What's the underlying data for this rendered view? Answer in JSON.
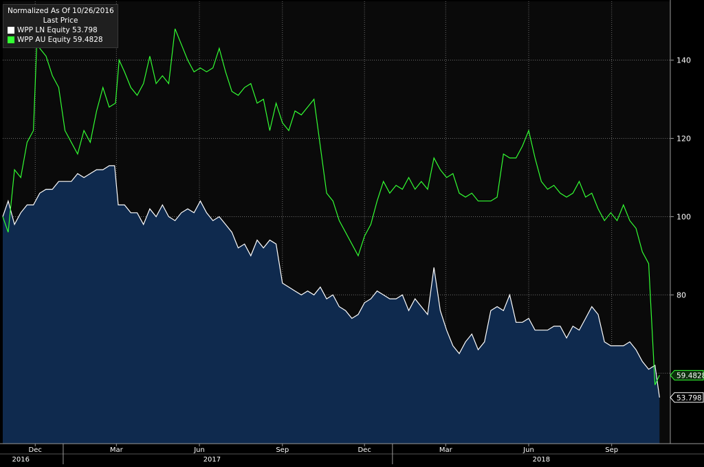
{
  "legend": {
    "title": "Normalized As Of 10/26/2016",
    "subtitle": "Last Price",
    "entries": [
      {
        "label": "WPP LN Equity 53.798",
        "color": "#ffffff"
      },
      {
        "label": "WPP AU Equity 59.4828",
        "color": "#33ff33"
      }
    ]
  },
  "colors": {
    "background": "#000000",
    "plot_background": "#0a0a0a",
    "grid": "#6e6e6e",
    "area_fill": "#0f2a4e",
    "ln_line": "#ffffff",
    "au_line": "#33ff33"
  },
  "chart_data": {
    "type": "line",
    "title": "",
    "xlabel": "",
    "ylabel": "",
    "ylim": [
      42,
      155
    ],
    "y_ticks": [
      140,
      120,
      100,
      80
    ],
    "x_ticks": [
      {
        "label": "Dec",
        "date": "2016-12-01"
      },
      {
        "label": "Mar",
        "date": "2017-03-01"
      },
      {
        "label": "Jun",
        "date": "2017-06-01"
      },
      {
        "label": "Sep",
        "date": "2017-09-01"
      },
      {
        "label": "Dec",
        "date": "2017-12-01"
      },
      {
        "label": "Mar",
        "date": "2018-03-01"
      },
      {
        "label": "Jun",
        "date": "2018-06-01"
      },
      {
        "label": "Sep",
        "date": "2018-09-01"
      }
    ],
    "year_labels": [
      {
        "label": "2016",
        "date": "2016-11-15"
      },
      {
        "label": "2017",
        "date": "2017-06-15"
      },
      {
        "label": "2018",
        "date": "2018-06-15"
      }
    ],
    "year_separators": [
      "2017-01-01",
      "2018-01-01"
    ],
    "xlim": [
      "2016-10-26",
      "2018-11-05"
    ],
    "grid": true,
    "legend_position": "top-left",
    "last_values": [
      {
        "series": "WPP AU Equity",
        "label": "59.4828",
        "value": 59.4828
      },
      {
        "series": "WPP LN Equity",
        "label": "53.798",
        "value": 53.798
      }
    ],
    "series": [
      {
        "name": "WPP LN Equity",
        "style": "area",
        "points": [
          [
            "2016-10-26",
            100
          ],
          [
            "2016-11-01",
            104
          ],
          [
            "2016-11-08",
            98
          ],
          [
            "2016-11-15",
            101
          ],
          [
            "2016-11-22",
            103
          ],
          [
            "2016-11-29",
            103
          ],
          [
            "2016-12-06",
            106
          ],
          [
            "2016-12-13",
            107
          ],
          [
            "2016-12-20",
            107
          ],
          [
            "2016-12-27",
            109
          ],
          [
            "2017-01-03",
            109
          ],
          [
            "2017-01-10",
            109
          ],
          [
            "2017-01-17",
            111
          ],
          [
            "2017-01-24",
            110
          ],
          [
            "2017-01-31",
            111
          ],
          [
            "2017-02-07",
            112
          ],
          [
            "2017-02-14",
            112
          ],
          [
            "2017-02-21",
            113
          ],
          [
            "2017-02-27",
            113
          ],
          [
            "2017-03-03",
            103
          ],
          [
            "2017-03-10",
            103
          ],
          [
            "2017-03-17",
            101
          ],
          [
            "2017-03-24",
            101
          ],
          [
            "2017-03-31",
            98
          ],
          [
            "2017-04-07",
            102
          ],
          [
            "2017-04-14",
            100
          ],
          [
            "2017-04-21",
            103
          ],
          [
            "2017-04-28",
            100
          ],
          [
            "2017-05-05",
            99
          ],
          [
            "2017-05-12",
            101
          ],
          [
            "2017-05-19",
            102
          ],
          [
            "2017-05-26",
            101
          ],
          [
            "2017-06-02",
            104
          ],
          [
            "2017-06-09",
            101
          ],
          [
            "2017-06-16",
            99
          ],
          [
            "2017-06-23",
            100
          ],
          [
            "2017-06-30",
            98
          ],
          [
            "2017-07-07",
            96
          ],
          [
            "2017-07-14",
            92
          ],
          [
            "2017-07-21",
            93
          ],
          [
            "2017-07-28",
            90
          ],
          [
            "2017-08-04",
            94
          ],
          [
            "2017-08-11",
            92
          ],
          [
            "2017-08-18",
            94
          ],
          [
            "2017-08-25",
            93
          ],
          [
            "2017-09-01",
            83
          ],
          [
            "2017-09-08",
            82
          ],
          [
            "2017-09-15",
            81
          ],
          [
            "2017-09-22",
            80
          ],
          [
            "2017-09-29",
            81
          ],
          [
            "2017-10-06",
            80
          ],
          [
            "2017-10-13",
            82
          ],
          [
            "2017-10-20",
            79
          ],
          [
            "2017-10-27",
            80
          ],
          [
            "2017-11-03",
            77
          ],
          [
            "2017-11-10",
            76
          ],
          [
            "2017-11-17",
            74
          ],
          [
            "2017-11-24",
            75
          ],
          [
            "2017-12-01",
            78
          ],
          [
            "2017-12-08",
            79
          ],
          [
            "2017-12-15",
            81
          ],
          [
            "2017-12-22",
            80
          ],
          [
            "2017-12-29",
            79
          ],
          [
            "2018-01-05",
            79
          ],
          [
            "2018-01-12",
            80
          ],
          [
            "2018-01-19",
            76
          ],
          [
            "2018-01-26",
            79
          ],
          [
            "2018-02-02",
            77
          ],
          [
            "2018-02-09",
            75
          ],
          [
            "2018-02-16",
            87
          ],
          [
            "2018-02-23",
            76
          ],
          [
            "2018-03-02",
            71
          ],
          [
            "2018-03-09",
            67
          ],
          [
            "2018-03-16",
            65
          ],
          [
            "2018-03-23",
            68
          ],
          [
            "2018-03-30",
            70
          ],
          [
            "2018-04-06",
            66
          ],
          [
            "2018-04-13",
            68
          ],
          [
            "2018-04-20",
            76
          ],
          [
            "2018-04-27",
            77
          ],
          [
            "2018-05-04",
            76
          ],
          [
            "2018-05-11",
            80
          ],
          [
            "2018-05-18",
            73
          ],
          [
            "2018-05-25",
            73
          ],
          [
            "2018-06-01",
            74
          ],
          [
            "2018-06-08",
            71
          ],
          [
            "2018-06-15",
            71
          ],
          [
            "2018-06-22",
            71
          ],
          [
            "2018-06-29",
            72
          ],
          [
            "2018-07-06",
            72
          ],
          [
            "2018-07-13",
            69
          ],
          [
            "2018-07-20",
            72
          ],
          [
            "2018-07-27",
            71
          ],
          [
            "2018-08-03",
            74
          ],
          [
            "2018-08-10",
            77
          ],
          [
            "2018-08-17",
            75
          ],
          [
            "2018-08-24",
            68
          ],
          [
            "2018-08-31",
            67
          ],
          [
            "2018-09-07",
            67
          ],
          [
            "2018-09-14",
            67
          ],
          [
            "2018-09-21",
            68
          ],
          [
            "2018-09-28",
            66
          ],
          [
            "2018-10-05",
            63
          ],
          [
            "2018-10-12",
            61
          ],
          [
            "2018-10-19",
            62
          ],
          [
            "2018-10-24",
            53.798
          ]
        ]
      },
      {
        "name": "WPP AU Equity",
        "style": "line",
        "points": [
          [
            "2016-10-26",
            100
          ],
          [
            "2016-11-01",
            96
          ],
          [
            "2016-11-08",
            112
          ],
          [
            "2016-11-15",
            110
          ],
          [
            "2016-11-22",
            119
          ],
          [
            "2016-11-29",
            122
          ],
          [
            "2016-12-03",
            146
          ],
          [
            "2016-12-06",
            143
          ],
          [
            "2016-12-13",
            141
          ],
          [
            "2016-12-20",
            136
          ],
          [
            "2016-12-27",
            133
          ],
          [
            "2017-01-03",
            122
          ],
          [
            "2017-01-10",
            119
          ],
          [
            "2017-01-17",
            116
          ],
          [
            "2017-01-24",
            122
          ],
          [
            "2017-01-31",
            119
          ],
          [
            "2017-02-07",
            127
          ],
          [
            "2017-02-14",
            133
          ],
          [
            "2017-02-21",
            128
          ],
          [
            "2017-02-28",
            129
          ],
          [
            "2017-03-04",
            140
          ],
          [
            "2017-03-10",
            137
          ],
          [
            "2017-03-17",
            133
          ],
          [
            "2017-03-24",
            131
          ],
          [
            "2017-03-31",
            134
          ],
          [
            "2017-04-07",
            141
          ],
          [
            "2017-04-14",
            134
          ],
          [
            "2017-04-21",
            136
          ],
          [
            "2017-04-28",
            134
          ],
          [
            "2017-05-05",
            148
          ],
          [
            "2017-05-12",
            144
          ],
          [
            "2017-05-19",
            140
          ],
          [
            "2017-05-26",
            137
          ],
          [
            "2017-06-02",
            138
          ],
          [
            "2017-06-09",
            137
          ],
          [
            "2017-06-16",
            138
          ],
          [
            "2017-06-23",
            143
          ],
          [
            "2017-06-30",
            137
          ],
          [
            "2017-07-07",
            132
          ],
          [
            "2017-07-14",
            131
          ],
          [
            "2017-07-21",
            133
          ],
          [
            "2017-07-28",
            134
          ],
          [
            "2017-08-04",
            129
          ],
          [
            "2017-08-11",
            130
          ],
          [
            "2017-08-18",
            122
          ],
          [
            "2017-08-25",
            129
          ],
          [
            "2017-09-01",
            124
          ],
          [
            "2017-09-08",
            122
          ],
          [
            "2017-09-15",
            127
          ],
          [
            "2017-09-22",
            126
          ],
          [
            "2017-09-29",
            128
          ],
          [
            "2017-10-06",
            130
          ],
          [
            "2017-10-13",
            118
          ],
          [
            "2017-10-20",
            106
          ],
          [
            "2017-10-27",
            104
          ],
          [
            "2017-11-03",
            99
          ],
          [
            "2017-11-10",
            96
          ],
          [
            "2017-11-17",
            93
          ],
          [
            "2017-11-24",
            90
          ],
          [
            "2017-12-01",
            95
          ],
          [
            "2017-12-08",
            98
          ],
          [
            "2017-12-15",
            104
          ],
          [
            "2017-12-22",
            109
          ],
          [
            "2017-12-29",
            106
          ],
          [
            "2018-01-05",
            108
          ],
          [
            "2018-01-12",
            107
          ],
          [
            "2018-01-19",
            110
          ],
          [
            "2018-01-26",
            107
          ],
          [
            "2018-02-02",
            109
          ],
          [
            "2018-02-09",
            107
          ],
          [
            "2018-02-16",
            115
          ],
          [
            "2018-02-23",
            112
          ],
          [
            "2018-03-02",
            110
          ],
          [
            "2018-03-09",
            111
          ],
          [
            "2018-03-16",
            106
          ],
          [
            "2018-03-23",
            105
          ],
          [
            "2018-03-30",
            106
          ],
          [
            "2018-04-06",
            104
          ],
          [
            "2018-04-13",
            104
          ],
          [
            "2018-04-20",
            104
          ],
          [
            "2018-04-27",
            105
          ],
          [
            "2018-05-04",
            116
          ],
          [
            "2018-05-11",
            115
          ],
          [
            "2018-05-18",
            115
          ],
          [
            "2018-05-25",
            118
          ],
          [
            "2018-06-01",
            122
          ],
          [
            "2018-06-08",
            115
          ],
          [
            "2018-06-15",
            109
          ],
          [
            "2018-06-22",
            107
          ],
          [
            "2018-06-29",
            108
          ],
          [
            "2018-07-06",
            106
          ],
          [
            "2018-07-13",
            105
          ],
          [
            "2018-07-20",
            106
          ],
          [
            "2018-07-27",
            109
          ],
          [
            "2018-08-03",
            105
          ],
          [
            "2018-08-10",
            106
          ],
          [
            "2018-08-17",
            102
          ],
          [
            "2018-08-24",
            99
          ],
          [
            "2018-08-31",
            101
          ],
          [
            "2018-09-07",
            99
          ],
          [
            "2018-09-14",
            103
          ],
          [
            "2018-09-21",
            99
          ],
          [
            "2018-09-28",
            97
          ],
          [
            "2018-10-05",
            91
          ],
          [
            "2018-10-12",
            88
          ],
          [
            "2018-10-19",
            57
          ],
          [
            "2018-10-24",
            59.4828
          ]
        ]
      }
    ]
  }
}
